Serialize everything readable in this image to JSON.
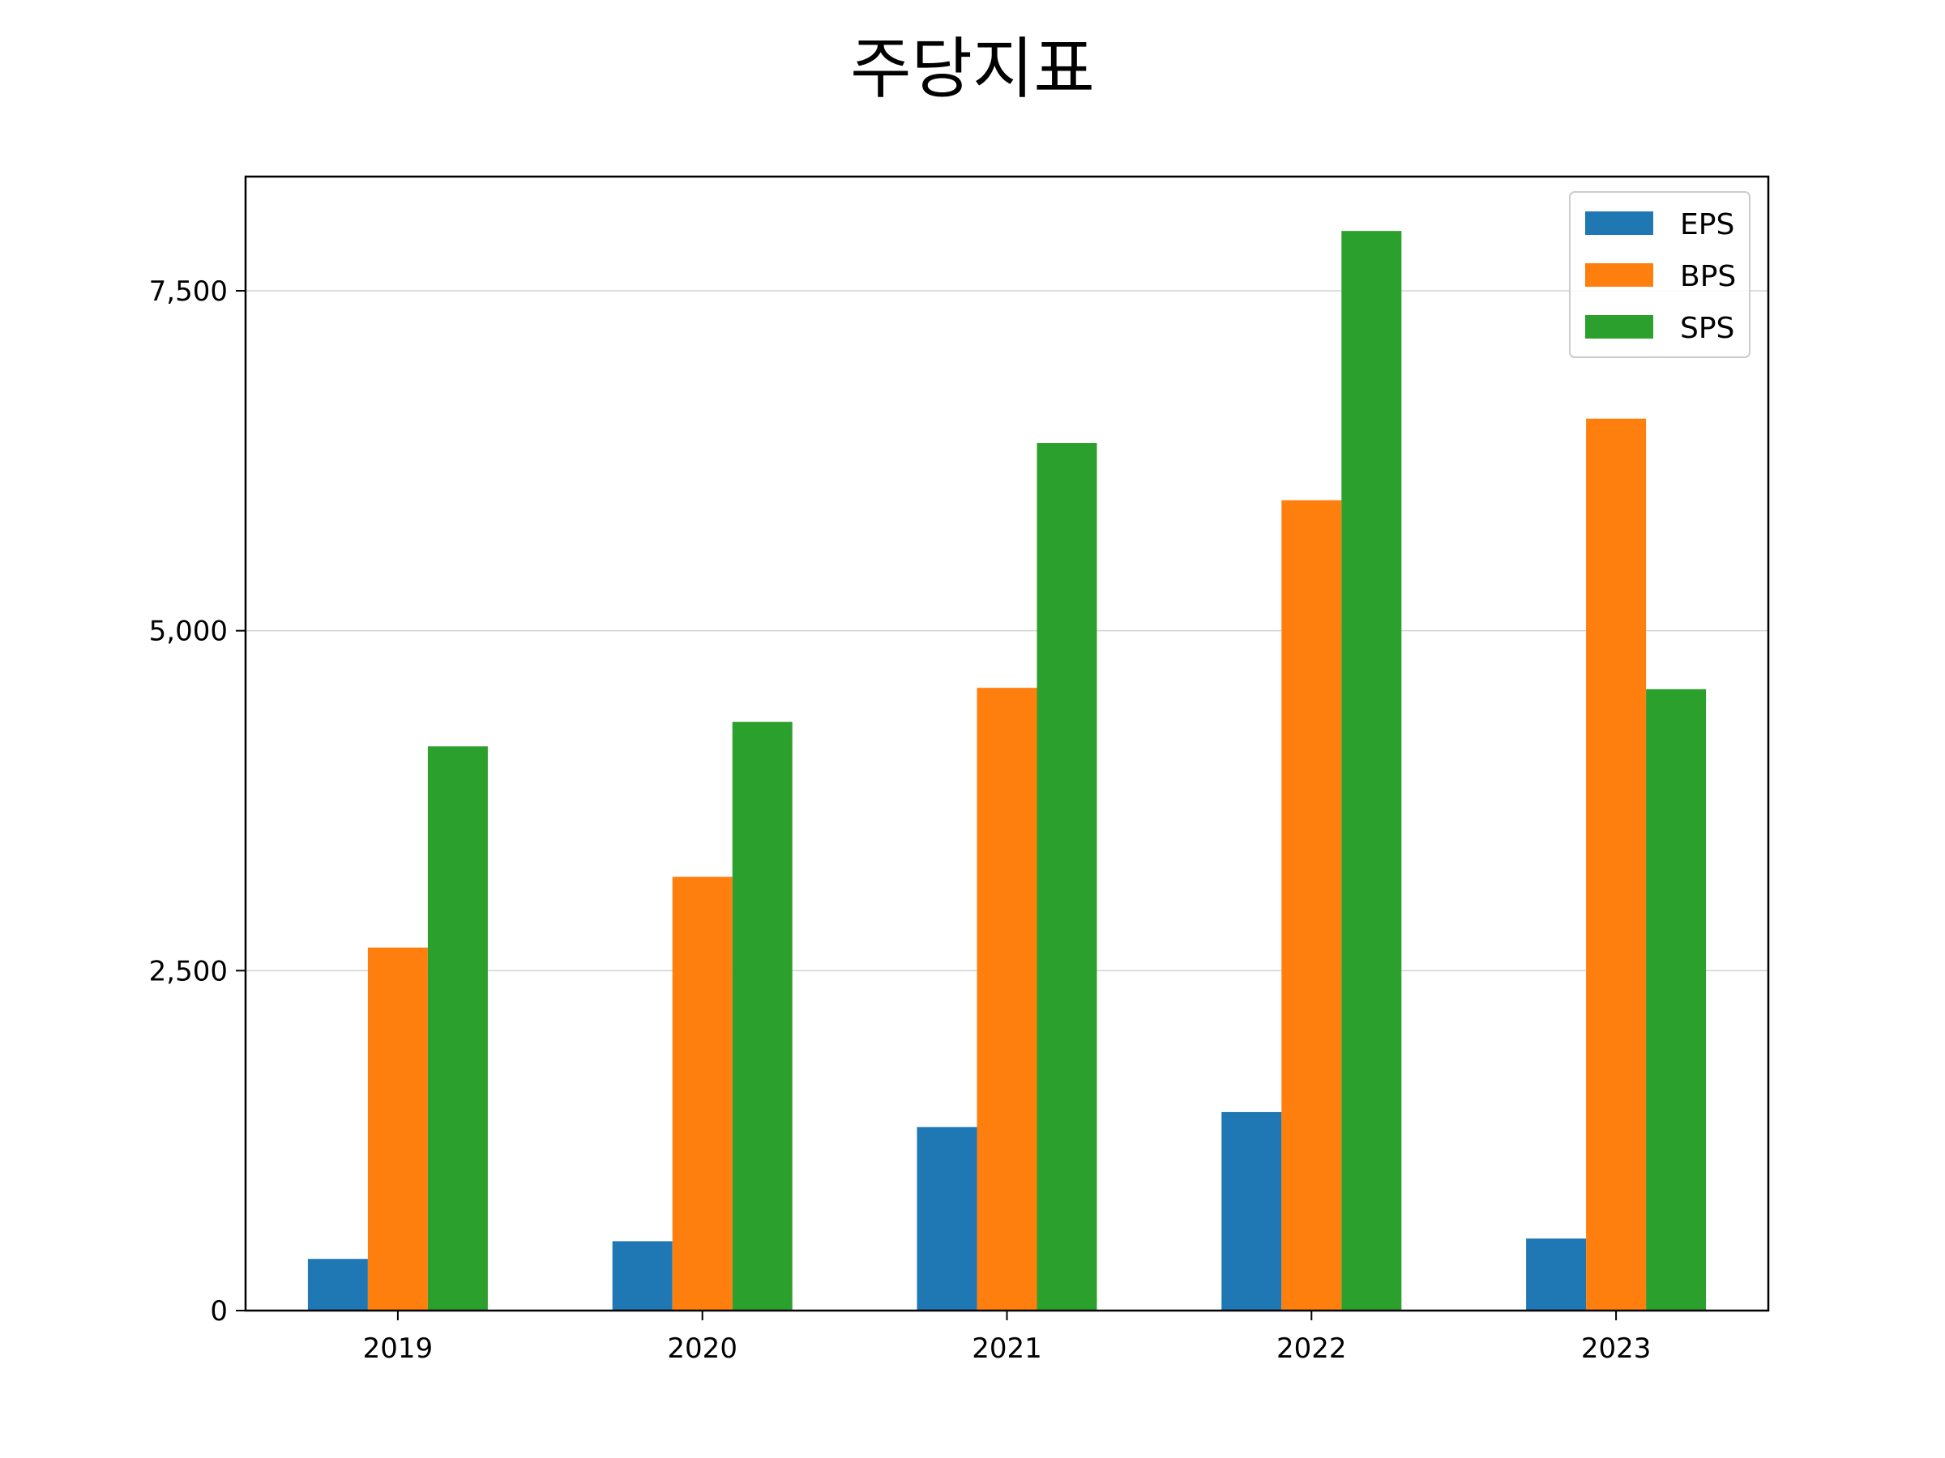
{
  "chart_data": {
    "type": "bar",
    "title": "주당지표",
    "xlabel": "",
    "ylabel": "",
    "categories": [
      "2019",
      "2020",
      "2021",
      "2022",
      "2023"
    ],
    "series": [
      {
        "name": "EPS",
        "color": "#1f77b4",
        "values": [
          380,
          510,
          1350,
          1460,
          530
        ]
      },
      {
        "name": "BPS",
        "color": "#ff7f0e",
        "values": [
          2670,
          3190,
          4580,
          5960,
          6560
        ]
      },
      {
        "name": "SPS",
        "color": "#2ca02c",
        "values": [
          4150,
          4330,
          6380,
          7940,
          4570
        ]
      }
    ],
    "yticks": [
      0,
      2500,
      5000,
      7500
    ],
    "ytick_labels": [
      "0",
      "2,500",
      "5,000",
      "7,500"
    ],
    "ylim": [
      0,
      8340
    ],
    "grid": "y",
    "legend_position": "top-right"
  }
}
